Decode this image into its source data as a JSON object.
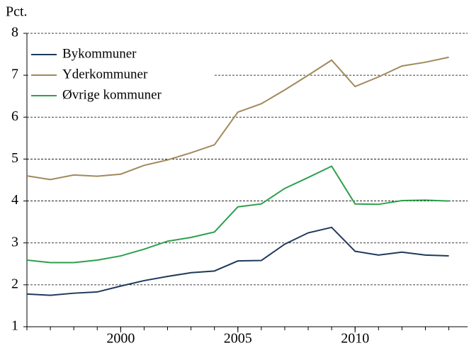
{
  "chart_data": {
    "type": "line",
    "y_label": "Pct.",
    "x": [
      1996,
      1997,
      1998,
      1999,
      2000,
      2001,
      2002,
      2003,
      2004,
      2005,
      2006,
      2007,
      2008,
      2009,
      2010,
      2011,
      2012,
      2013,
      2014
    ],
    "series": [
      {
        "name": "Bykommuner",
        "color": "#1f3a5a",
        "values": [
          1.78,
          1.75,
          1.8,
          1.83,
          1.97,
          2.1,
          2.2,
          2.29,
          2.33,
          2.57,
          2.58,
          2.97,
          3.24,
          3.37,
          2.8,
          2.71,
          2.78,
          2.71,
          2.69
        ]
      },
      {
        "name": "Yderkommuner",
        "color": "#a08a5c",
        "values": [
          4.6,
          4.51,
          4.62,
          4.59,
          4.64,
          4.85,
          4.98,
          5.15,
          5.34,
          6.12,
          6.32,
          6.65,
          7.0,
          7.36,
          6.73,
          6.96,
          7.22,
          7.31,
          7.43
        ]
      },
      {
        "name": "Øvrige kommuner",
        "color": "#2ca04c",
        "values": [
          2.59,
          2.53,
          2.53,
          2.59,
          2.69,
          2.85,
          3.04,
          3.13,
          3.26,
          3.86,
          3.93,
          4.3,
          4.56,
          4.83,
          3.93,
          3.92,
          4.01,
          4.02,
          4.0
        ]
      }
    ],
    "xlim": [
      1996,
      2014.8
    ],
    "xticks": [
      2000,
      2005,
      2010
    ],
    "ylim": [
      1,
      8
    ],
    "yticks": [
      1,
      2,
      3,
      4,
      5,
      6,
      7,
      8
    ],
    "grid": true,
    "legend": "upper left"
  }
}
